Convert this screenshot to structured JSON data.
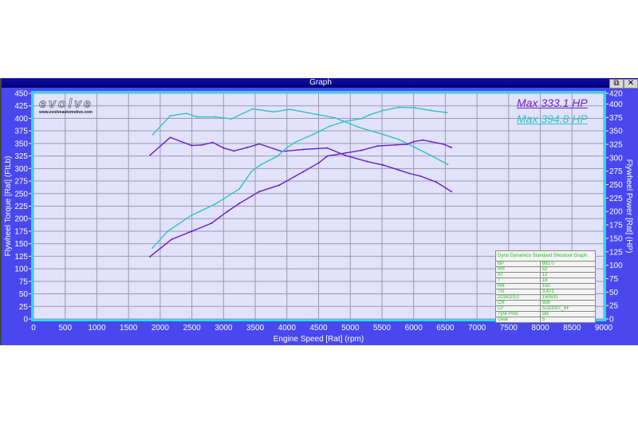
{
  "window": {
    "title": "Graph",
    "restore_icon": "restore-icon",
    "close_icon": "close-icon"
  },
  "logo": {
    "wordmark": "evolve",
    "url": "www.evolveautomotive.com"
  },
  "annotations": [
    {
      "text": "Max 333.1 HP",
      "color": "#6a1fc8"
    },
    {
      "text": "Max 394.8 HP",
      "color": "#2ec4c4"
    }
  ],
  "info_table": {
    "title": "Dyno Dynamics Standard Shootout Graph",
    "rows": [
      [
        "BP",
        "991.0"
      ],
      [
        "RH",
        "52"
      ],
      [
        "AT",
        "12"
      ],
      [
        "T",
        "18"
      ],
      [
        "RR",
        "150"
      ],
      [
        "TN",
        "3,471"
      ],
      [
        "20161010",
        "150531"
      ],
      [
        "CR",
        "926"
      ],
      [
        "CF",
        "SJ1000T_6F"
      ],
      [
        "Tyre Pres",
        "std"
      ],
      [
        "Gear",
        "5"
      ]
    ]
  },
  "chart_data": {
    "type": "line",
    "xlabel": "Engine Speed [Rat] (rpm)",
    "ylabel": "Flywheel Torque [Rat] (FtLb)",
    "y2label": "Flywheel Power [Rat] (HP)",
    "xlim": [
      0,
      9000
    ],
    "ylim": [
      0,
      450
    ],
    "y2lim": [
      0,
      420
    ],
    "xticks": [
      0,
      500,
      1000,
      1500,
      2000,
      2500,
      3000,
      3500,
      4000,
      4500,
      5000,
      5500,
      6000,
      6500,
      7000,
      7500,
      8000,
      8500,
      9000
    ],
    "yticks": [
      0,
      25,
      50,
      75,
      100,
      125,
      150,
      175,
      200,
      225,
      250,
      275,
      300,
      325,
      350,
      375,
      400,
      425,
      450
    ],
    "y2ticks": [
      0,
      25,
      50,
      75,
      100,
      125,
      150,
      175,
      200,
      225,
      250,
      275,
      300,
      325,
      350,
      375,
      400,
      420
    ],
    "grid": true,
    "plot_bg": "#e2e2fa",
    "series": [
      {
        "axis": "left",
        "color": "#2ec4c4",
        "points": [
          [
            1885,
            368
          ],
          [
            2158,
            405
          ],
          [
            2410,
            410
          ],
          [
            2578,
            403
          ],
          [
            2872,
            403
          ],
          [
            3123,
            399
          ],
          [
            3460,
            419
          ],
          [
            3795,
            413
          ],
          [
            4047,
            418
          ],
          [
            4467,
            408
          ],
          [
            4761,
            401
          ],
          [
            5139,
            382
          ],
          [
            5516,
            368
          ],
          [
            5768,
            358
          ],
          [
            6020,
            342
          ],
          [
            6272,
            326
          ],
          [
            6537,
            308
          ]
        ]
      },
      {
        "axis": "left",
        "color": "#6a1fc8",
        "points": [
          [
            1843,
            327
          ],
          [
            2158,
            362
          ],
          [
            2494,
            346
          ],
          [
            2662,
            347
          ],
          [
            2830,
            352
          ],
          [
            2998,
            341
          ],
          [
            3165,
            335
          ],
          [
            3375,
            342
          ],
          [
            3564,
            349
          ],
          [
            3921,
            334
          ],
          [
            4257,
            338
          ],
          [
            4635,
            341
          ],
          [
            4925,
            326
          ],
          [
            5265,
            314
          ],
          [
            5516,
            307
          ],
          [
            5768,
            297
          ],
          [
            5936,
            290
          ],
          [
            6104,
            285
          ],
          [
            6356,
            273
          ],
          [
            6596,
            254
          ]
        ]
      },
      {
        "axis": "right",
        "color": "#2ec4c4",
        "points": [
          [
            1877,
            132
          ],
          [
            2116,
            163
          ],
          [
            2494,
            193
          ],
          [
            2872,
            214
          ],
          [
            3249,
            242
          ],
          [
            3438,
            274
          ],
          [
            3585,
            287
          ],
          [
            3837,
            302
          ],
          [
            4005,
            319
          ],
          [
            4131,
            329
          ],
          [
            4425,
            344
          ],
          [
            4677,
            359
          ],
          [
            4929,
            368
          ],
          [
            5181,
            373
          ],
          [
            5306,
            380
          ],
          [
            5516,
            388
          ],
          [
            5768,
            394
          ],
          [
            6020,
            393
          ],
          [
            6272,
            388
          ],
          [
            6524,
            384
          ]
        ]
      },
      {
        "axis": "right",
        "color": "#6a1fc8",
        "points": [
          [
            1839,
            116
          ],
          [
            2179,
            148
          ],
          [
            2494,
            163
          ],
          [
            2808,
            178
          ],
          [
            3060,
            200
          ],
          [
            3249,
            215
          ],
          [
            3564,
            237
          ],
          [
            3879,
            249
          ],
          [
            4257,
            274
          ],
          [
            4509,
            291
          ],
          [
            4635,
            303
          ],
          [
            4929,
            309
          ],
          [
            5181,
            314
          ],
          [
            5432,
            322
          ],
          [
            5727,
            324
          ],
          [
            5894,
            325
          ],
          [
            5999,
            330
          ],
          [
            6146,
            333
          ],
          [
            6272,
            330
          ],
          [
            6482,
            325
          ],
          [
            6596,
            319
          ]
        ]
      }
    ]
  }
}
